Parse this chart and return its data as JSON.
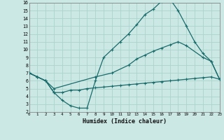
{
  "xlabel": "Humidex (Indice chaleur)",
  "bg_color": "#cce8e4",
  "grid_color": "#aad4cc",
  "line_color": "#1a6b6b",
  "xlim": [
    0,
    23
  ],
  "ylim": [
    2,
    16
  ],
  "xticks": [
    0,
    1,
    2,
    3,
    4,
    5,
    6,
    7,
    8,
    9,
    10,
    11,
    12,
    13,
    14,
    15,
    16,
    17,
    18,
    19,
    20,
    21,
    22,
    23
  ],
  "yticks": [
    2,
    3,
    4,
    5,
    6,
    7,
    8,
    9,
    10,
    11,
    12,
    13,
    14,
    15,
    16
  ],
  "curve1_x": [
    0,
    1,
    2,
    3,
    4,
    5,
    6,
    7,
    8,
    9,
    10,
    11,
    12,
    13,
    14,
    15,
    16,
    17,
    18,
    19,
    20,
    21,
    22,
    23
  ],
  "curve1_y": [
    7.0,
    6.5,
    6.0,
    4.5,
    3.5,
    2.8,
    2.5,
    2.5,
    6.0,
    9.0,
    10.0,
    11.0,
    12.0,
    13.2,
    14.5,
    15.2,
    16.2,
    16.5,
    15.0,
    13.0,
    11.0,
    9.5,
    8.5,
    6.2
  ],
  "curve2_x": [
    0,
    1,
    2,
    3,
    8,
    10,
    12,
    13,
    14,
    15,
    16,
    17,
    18,
    19,
    21,
    22,
    23
  ],
  "curve2_y": [
    7.0,
    6.5,
    6.0,
    5.0,
    6.5,
    7.0,
    8.0,
    8.8,
    9.3,
    9.8,
    10.2,
    10.6,
    11.0,
    10.5,
    9.0,
    8.5,
    6.2
  ],
  "curve3_x": [
    0,
    1,
    2,
    3,
    4,
    5,
    6,
    7,
    8,
    9,
    10,
    11,
    12,
    13,
    14,
    15,
    16,
    17,
    18,
    19,
    20,
    21,
    22,
    23
  ],
  "curve3_y": [
    7.0,
    6.5,
    6.0,
    4.5,
    4.5,
    4.8,
    4.8,
    5.0,
    5.1,
    5.2,
    5.3,
    5.4,
    5.5,
    5.6,
    5.7,
    5.8,
    5.9,
    6.0,
    6.1,
    6.2,
    6.3,
    6.4,
    6.5,
    6.2
  ]
}
